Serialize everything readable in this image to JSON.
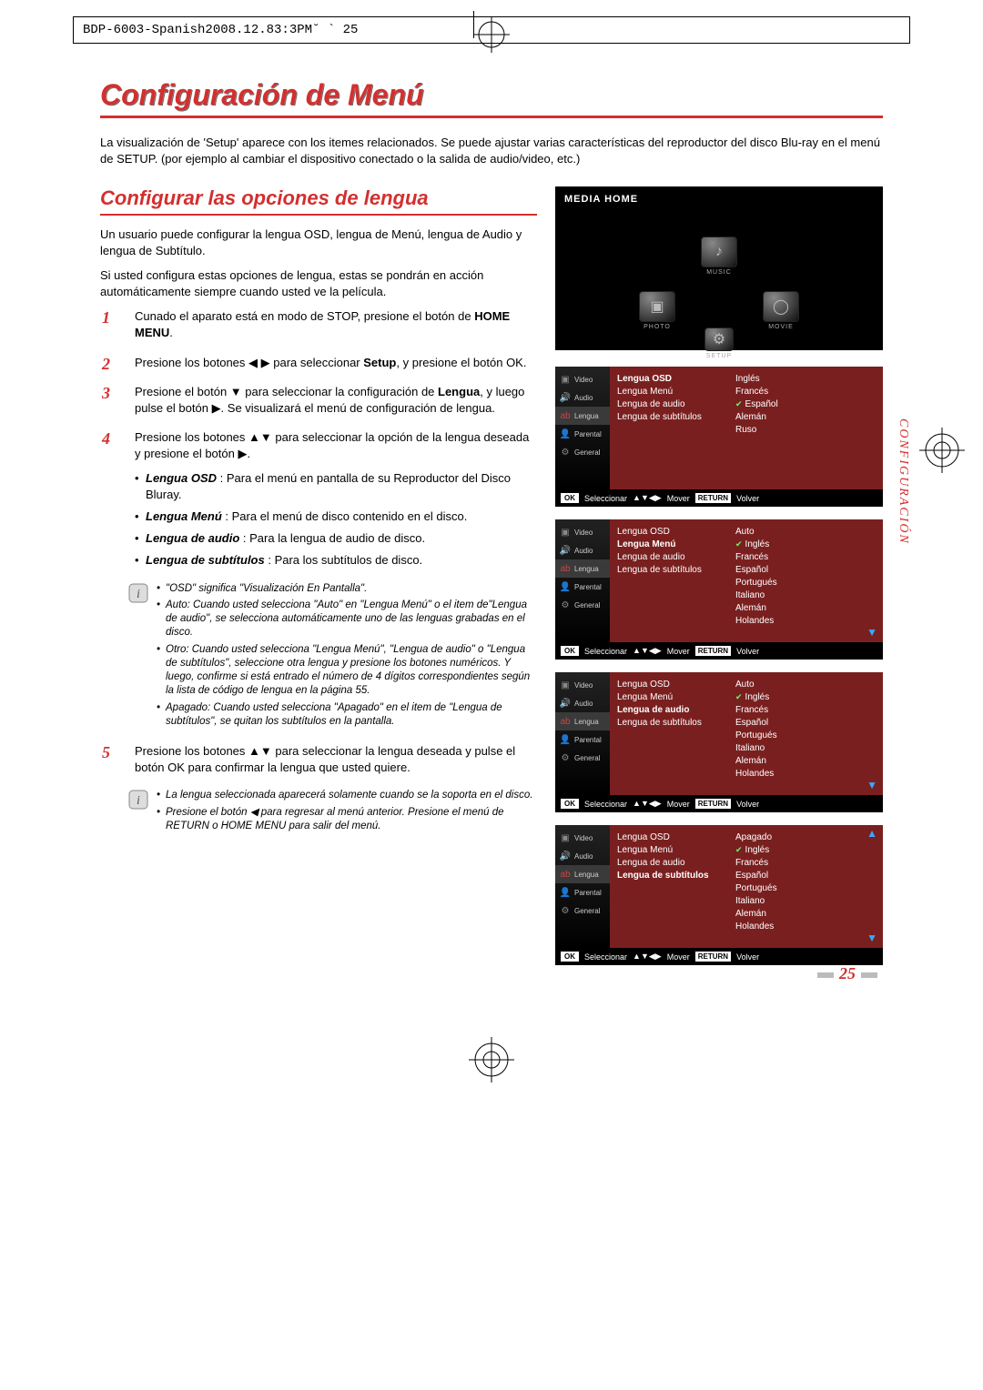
{
  "print_header": "BDP-6003-Spanish2008.12.83:3PM˘ ` 25",
  "title": "Configuración de Menú",
  "intro": "La visualización de 'Setup' aparece con los itemes relacionados. Se puede ajustar varias características del reproductor del disco Blu-ray en el menú de SETUP. (por ejemplo al cambiar el dispositivo conectado o la salida de audio/video, etc.)",
  "subtitle": "Configurar las opciones de lengua",
  "para1": "Un usuario puede configurar la lengua OSD, lengua de Menú, lengua de Audio y lengua de Subtítulo.",
  "para2": "Si usted configura estas opciones de lengua, estas se pondrán en acción automáticamente siempre cuando usted ve la película.",
  "steps": {
    "s1a": "Cunado el aparato está en modo de STOP, presione el botón de ",
    "s1b": "HOME MENU",
    "s1c": ".",
    "s2a": "Presione los botones ◀ ▶ para seleccionar ",
    "s2b": "Setup",
    "s2c": ", y presione el botón OK.",
    "s3a": "Presione el botón ▼ para seleccionar la configuración de ",
    "s3b": "Lengua",
    "s3c": ", y luego pulse el botón ▶. Se visualizará el menú de configuración de lengua.",
    "s4": "Presione los botones ▲▼ para seleccionar la opción de la lengua deseada y presione el botón ▶.",
    "s4_osd_l": "Lengua OSD",
    "s4_osd_t": " : Para el menú en pantalla de su Reproductor del Disco Bluray.",
    "s4_menu_l": "Lengua Menú",
    "s4_menu_t": " : Para el menú de disco contenido en el disco.",
    "s4_audio_l": "Lengua de audio",
    "s4_audio_t": " : Para la lengua de audio de disco.",
    "s4_sub_l": "Lengua de subtítulos",
    "s4_sub_t": " : Para los subtítulos de disco.",
    "s5": "Presione los botones ▲▼ para seleccionar la lengua deseada y pulse el botón OK para confirmar la lengua que usted quiere."
  },
  "note1": {
    "n1": "\"OSD\" significa \"Visualización En Pantalla\".",
    "n2": "Auto: Cuando usted selecciona \"Auto\" en \"Lengua Menú\" o el item de\"Lengua de audio\", se selecciona automáticamente uno de las lenguas grabadas en el disco.",
    "n3": "Otro: Cuando usted selecciona \"Lengua Menú\", \"Lengua de audio\" o \"Lengua de subtítulos\", seleccione otra lengua y presione los botones numéricos. Y luego, confirme si está entrado el número de 4 dígitos correspondientes según la lista de código de lengua en la página 55.",
    "n4": "Apagado: Cuando usted selecciona \"Apagado\" en el item de \"Lengua de subtítulos\", se quitan los subtítulos en la pantalla."
  },
  "note2": {
    "n1": "La lengua seleccionada aparecerá solamente cuando se la soporta en el disco.",
    "n2": "Presione el botón ◀ para regresar al menú anterior. Presione el menú de RETURN o HOME MENU para salir del menú."
  },
  "media_home": {
    "title": "MEDIA HOME",
    "items": [
      {
        "icon": "♪",
        "label": "MUSIC"
      },
      {
        "icon": "▣",
        "label": "PHOTO"
      },
      {
        "icon": "◯",
        "label": "MOVIE"
      },
      {
        "icon": "⚙",
        "label": "SETUP"
      }
    ]
  },
  "side_items": [
    {
      "label": "Video",
      "glyph": "▣",
      "color": "#888"
    },
    {
      "label": "Audio",
      "glyph": "🔊",
      "color": "#888"
    },
    {
      "label": "Lengua",
      "glyph": "ab",
      "color": "#c44"
    },
    {
      "label": "Parental",
      "glyph": "👤",
      "color": "#888"
    },
    {
      "label": "General",
      "glyph": "⚙",
      "color": "#888"
    }
  ],
  "panel_labels": {
    "osd": "Lengua OSD",
    "menu": "Lengua Menú",
    "audio": "Lengua de audio",
    "sub": "Lengua de subtítulos"
  },
  "panels": [
    {
      "hl": 0,
      "opts": [
        "Inglés",
        "Francés",
        "Español",
        "Alemán",
        "Ruso"
      ],
      "check": 2,
      "down": false,
      "up": false
    },
    {
      "hl": 1,
      "opts": [
        "Auto",
        "Inglés",
        "Francés",
        "Español",
        "Portugués",
        "Italiano",
        "Alemán",
        "Holandes"
      ],
      "check": 1,
      "down": true,
      "up": false
    },
    {
      "hl": 2,
      "opts": [
        "Auto",
        "Inglés",
        "Francés",
        "Español",
        "Portugués",
        "Italiano",
        "Alemán",
        "Holandes"
      ],
      "check": 1,
      "down": true,
      "up": false
    },
    {
      "hl": 3,
      "opts": [
        "Apagado",
        "Inglés",
        "Francés",
        "Español",
        "Portugués",
        "Italiano",
        "Alemán",
        "Holandes"
      ],
      "check": 1,
      "down": true,
      "up": true
    }
  ],
  "hint": {
    "ok": "OK",
    "sel": "Seleccionar",
    "mov": "Mover",
    "ret": "RETURN",
    "vol": "Volver",
    "arrows": "▲▼◀▶"
  },
  "side_tab": "CONFIGURACIÓN",
  "page_num": "25",
  "colors": {
    "red": "#d32f2f",
    "panel_red": "#7a1f1f"
  }
}
